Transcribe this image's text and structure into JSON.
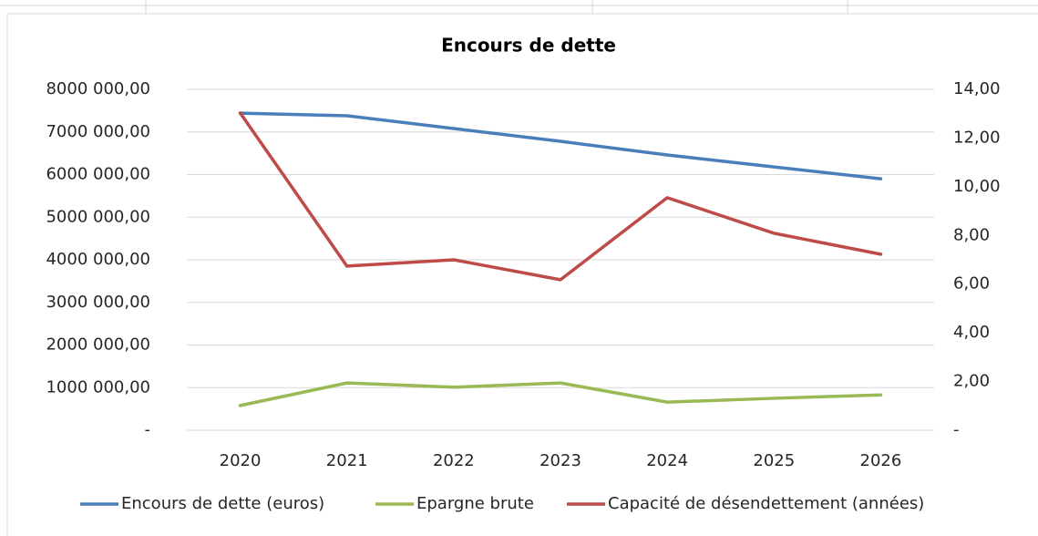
{
  "chart_data": {
    "type": "line",
    "title": "Encours de dette",
    "categories": [
      "2020",
      "2021",
      "2022",
      "2023",
      "2024",
      "2025",
      "2026"
    ],
    "series": [
      {
        "name": "Encours de dette (euros)",
        "color": "#4a7ebb",
        "values": [
          7440000,
          7380000,
          7080000,
          6780000,
          6460000,
          6180000,
          5900000
        ]
      },
      {
        "name": "Epargne brute",
        "color": "#98b954",
        "values": [
          580000,
          1110000,
          1010000,
          1110000,
          660000,
          750000,
          830000
        ]
      },
      {
        "name": "Capacité de désendettement (années)",
        "color": "#be4b48",
        "axis": "y2",
        "values": [
          13.03,
          6.74,
          7.0,
          6.18,
          9.55,
          8.09,
          7.23
        ]
      }
    ],
    "ylim": [
      0,
      8000000
    ],
    "yticks": [
      {
        "value": 0,
        "label": "-"
      },
      {
        "value": 1000000,
        "label": "1000 000,00"
      },
      {
        "value": 2000000,
        "label": "2000 000,00"
      },
      {
        "value": 3000000,
        "label": "3000 000,00"
      },
      {
        "value": 4000000,
        "label": "4000 000,00"
      },
      {
        "value": 5000000,
        "label": "5000 000,00"
      },
      {
        "value": 6000000,
        "label": "6000 000,00"
      },
      {
        "value": 7000000,
        "label": "7000 000,00"
      },
      {
        "value": 8000000,
        "label": "8000 000,00"
      }
    ],
    "y2lim": [
      0,
      14
    ],
    "y2ticks": [
      {
        "value": 0,
        "label": "-"
      },
      {
        "value": 2,
        "label": "2,00"
      },
      {
        "value": 4,
        "label": "4,00"
      },
      {
        "value": 6,
        "label": "6,00"
      },
      {
        "value": 8,
        "label": "8,00"
      },
      {
        "value": 10,
        "label": "10,00"
      },
      {
        "value": 12,
        "label": "12,00"
      },
      {
        "value": 14,
        "label": "14,00"
      }
    ],
    "grid": true,
    "legend": "bottom"
  }
}
